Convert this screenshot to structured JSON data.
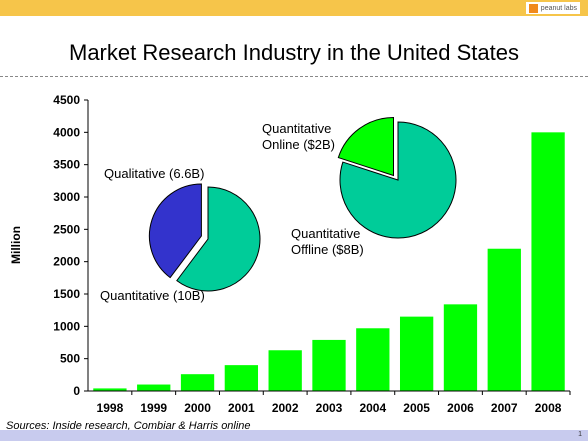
{
  "header": {
    "logo_text": "peanut labs"
  },
  "slide": {
    "title": "Market Research Industry in the United States",
    "sources": "Sources: Inside research, Combiar & Harris online",
    "page_number": "1"
  },
  "colors": {
    "bar": "#00ff00",
    "pie_teal": "#00cc99",
    "pie_blue": "#3333cc",
    "pie_green": "#00ff00",
    "top_bar": "#f6c54a",
    "bottom_bar": "#c8cbee"
  },
  "chart_data": [
    {
      "type": "bar",
      "categories": [
        "1998",
        "1999",
        "2000",
        "2001",
        "2002",
        "2003",
        "2004",
        "2005",
        "2006",
        "2007",
        "2008"
      ],
      "values": [
        40,
        100,
        260,
        400,
        630,
        790,
        970,
        1150,
        1340,
        2200,
        4000
      ],
      "ylabel": "Million",
      "ylim": [
        0,
        4500
      ],
      "yticks": [
        0,
        500,
        1000,
        1500,
        2000,
        2500,
        3000,
        3500,
        4000,
        4500
      ],
      "grid": false
    },
    {
      "type": "pie",
      "labels": [
        "Qualitative (6.6B)",
        "Quantitative (10B)"
      ],
      "values": [
        6.6,
        10
      ],
      "colors": [
        "#3333cc",
        "#00cc99"
      ],
      "exploded": "Qualitative (6.6B)"
    },
    {
      "type": "pie",
      "labels": [
        "Quantitative Online ($2B)",
        "Quantitative Offline ($8B)"
      ],
      "values": [
        2,
        8
      ],
      "colors": [
        "#00ff00",
        "#00cc99"
      ],
      "exploded": "Quantitative Online ($2B)"
    }
  ]
}
